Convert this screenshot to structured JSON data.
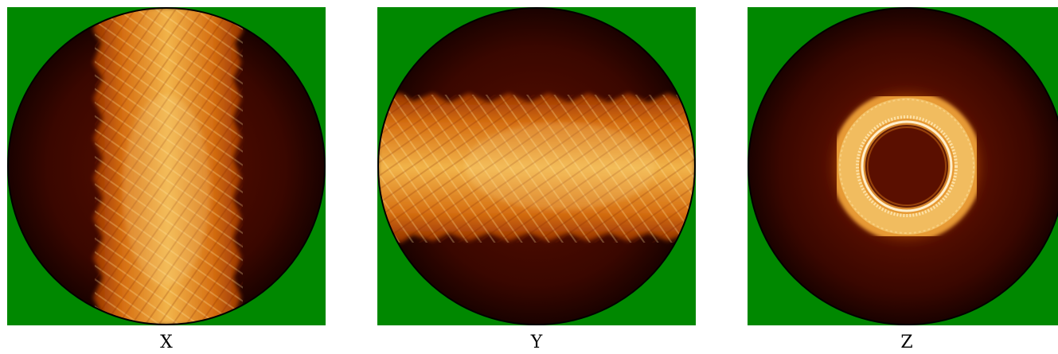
{
  "panels": [
    {
      "id": "x",
      "label": "X",
      "pattern": "vertical-band"
    },
    {
      "id": "y",
      "label": "Y",
      "pattern": "horizontal-band"
    },
    {
      "id": "z",
      "label": "Z",
      "pattern": "ring"
    }
  ],
  "colors": {
    "background": "#008800",
    "disk_dark": "#2a0400",
    "disk_mid": "#5c0f00",
    "glow_low": "#b04000",
    "glow_mid": "#e08a1a",
    "glow_high": "#ffe6a0",
    "disk_edge": "#000000"
  }
}
